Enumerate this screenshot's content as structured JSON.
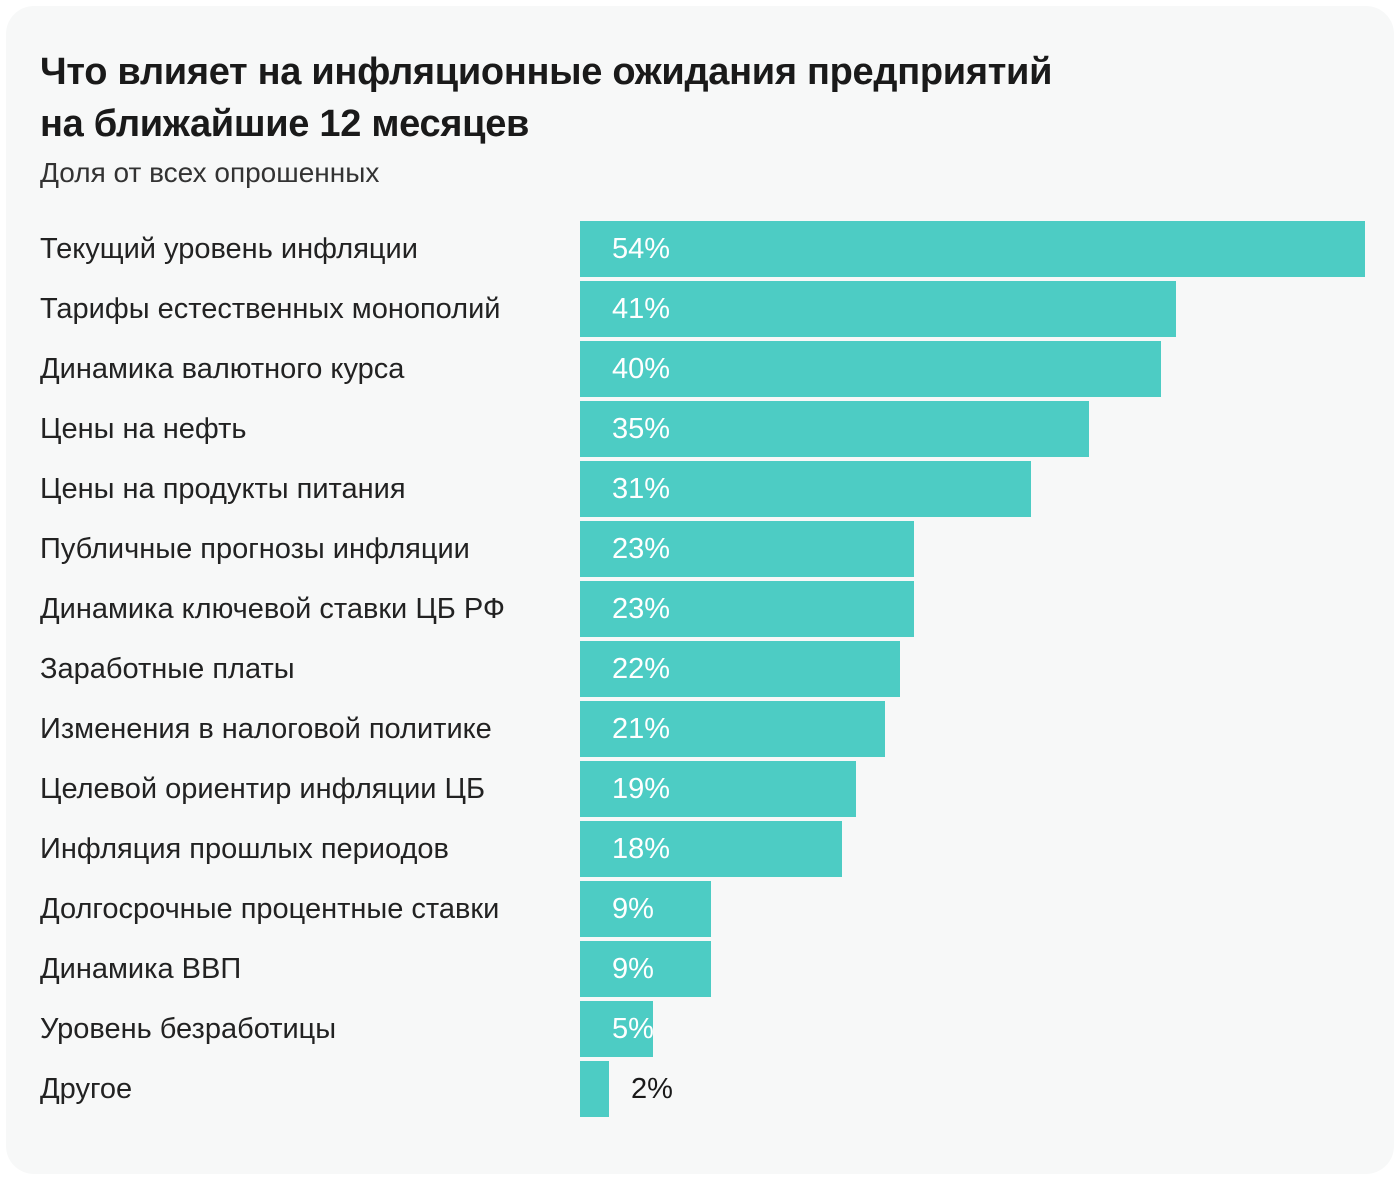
{
  "header": {
    "title_lines": [
      "Что влияет на инфляционные ожидания предприятий",
      "на ближайшие 12 месяцев"
    ],
    "subtitle": "Доля от всех опрошенных"
  },
  "chart_data": {
    "type": "bar",
    "orientation": "horizontal",
    "title": "Что влияет на инфляционные ожидания предприятий на ближайшие 12 месяцев",
    "subtitle": "Доля от всех опрошенных",
    "unit": "%",
    "categories": [
      "Текущий уровень инфляции",
      "Тарифы естественных монополий",
      "Динамика валютного курса",
      "Цены на нефть",
      "Цены на продукты питания",
      "Публичные прогнозы инфляции",
      "Динамика ключевой ставки ЦБ РФ",
      "Заработные платы",
      "Изменения в налоговой политике",
      "Целевой ориентир инфляции ЦБ",
      "Инфляция прошлых периодов",
      "Долгосрочные процентные ставки",
      "Динамика ВВП",
      "Уровень безработицы",
      "Другое"
    ],
    "values": [
      54,
      41,
      40,
      35,
      31,
      23,
      23,
      22,
      21,
      19,
      18,
      9,
      9,
      5,
      2
    ],
    "xlim": [
      0,
      54
    ],
    "grid": false,
    "legend": false,
    "value_labels_shown": true,
    "bar_color": "#4dccc4",
    "value_label_color_inside": "#ffffff",
    "value_label_color_outside": "#1a1a1a",
    "card_background": "#f7f8f8",
    "page_background": "#ffffff"
  }
}
